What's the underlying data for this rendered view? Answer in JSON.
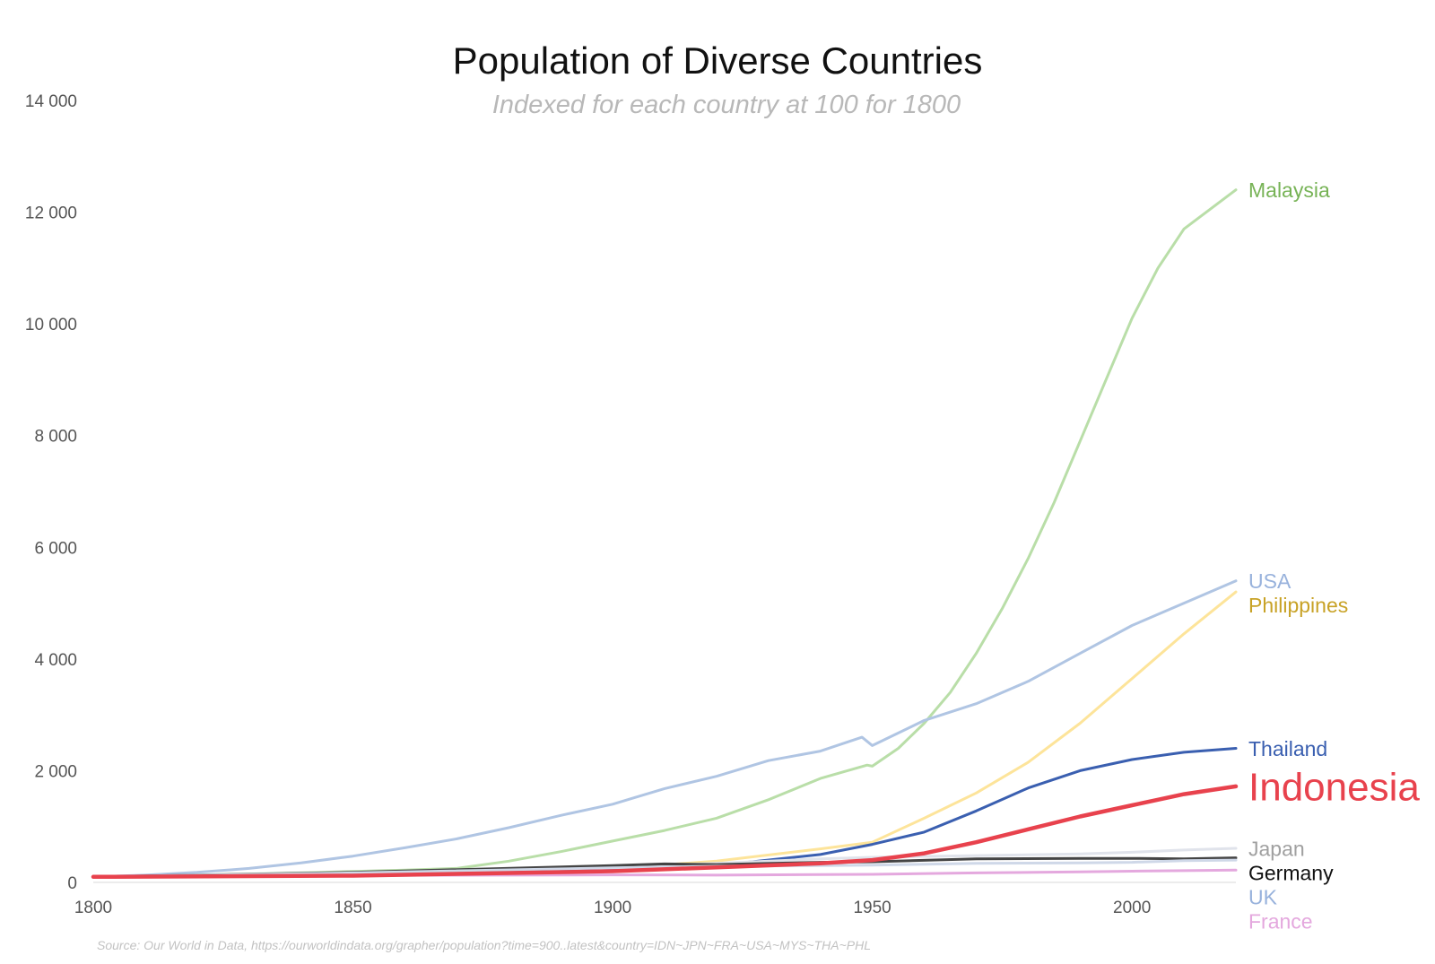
{
  "chart_data": {
    "type": "line",
    "title": "Population of Diverse Countries",
    "subtitle": "Indexed for each country at 100 for 1800",
    "xlabel": "",
    "ylabel": "",
    "xlim": [
      1800,
      2020
    ],
    "ylim": [
      0,
      14000
    ],
    "x_ticks": [
      1800,
      1850,
      1900,
      1950,
      2000
    ],
    "x_tick_labels": [
      "1800",
      "1850",
      "1900",
      "1950",
      "2000"
    ],
    "y_ticks": [
      0,
      2000,
      4000,
      6000,
      8000,
      10000,
      12000,
      14000
    ],
    "y_tick_labels": [
      "0",
      "2 000",
      "4 000",
      "6 000",
      "8 000",
      "10 000",
      "12 000",
      "14 000"
    ],
    "grid": false,
    "legend": "direct labels at line ends (right)",
    "source": "Source: Our World in Data, https://ourworldindata.org/grapher/population?time=900..latest&country=IDN~JPN~FRA~USA~MYS~THA~PHL",
    "series": [
      {
        "name": "Malaysia",
        "label": "Malaysia",
        "color": "#b9dea8",
        "label_color": "#77b356",
        "emphasis": false,
        "points": [
          [
            1800,
            100
          ],
          [
            1820,
            130
          ],
          [
            1840,
            170
          ],
          [
            1860,
            220
          ],
          [
            1870,
            250
          ],
          [
            1880,
            380
          ],
          [
            1890,
            550
          ],
          [
            1900,
            740
          ],
          [
            1910,
            930
          ],
          [
            1920,
            1150
          ],
          [
            1930,
            1480
          ],
          [
            1940,
            1860
          ],
          [
            1949,
            2100
          ],
          [
            1950,
            2080
          ],
          [
            1955,
            2400
          ],
          [
            1960,
            2850
          ],
          [
            1965,
            3400
          ],
          [
            1970,
            4100
          ],
          [
            1975,
            4900
          ],
          [
            1980,
            5800
          ],
          [
            1985,
            6800
          ],
          [
            1990,
            7900
          ],
          [
            1995,
            9000
          ],
          [
            2000,
            10100
          ],
          [
            2005,
            11000
          ],
          [
            2010,
            11700
          ],
          [
            2020,
            12400
          ]
        ]
      },
      {
        "name": "USA",
        "label": "USA",
        "color": "#b0c5e3",
        "label_color": "#98b2dc",
        "emphasis": false,
        "points": [
          [
            1800,
            100
          ],
          [
            1810,
            130
          ],
          [
            1820,
            180
          ],
          [
            1830,
            250
          ],
          [
            1840,
            350
          ],
          [
            1850,
            470
          ],
          [
            1860,
            620
          ],
          [
            1870,
            780
          ],
          [
            1880,
            980
          ],
          [
            1890,
            1200
          ],
          [
            1900,
            1400
          ],
          [
            1910,
            1680
          ],
          [
            1920,
            1900
          ],
          [
            1930,
            2180
          ],
          [
            1940,
            2350
          ],
          [
            1948,
            2600
          ],
          [
            1950,
            2450
          ],
          [
            1960,
            2900
          ],
          [
            1970,
            3200
          ],
          [
            1980,
            3600
          ],
          [
            1990,
            4100
          ],
          [
            2000,
            4600
          ],
          [
            2010,
            5000
          ],
          [
            2020,
            5400
          ]
        ]
      },
      {
        "name": "Philippines",
        "label": "Philippines",
        "color": "#fde49a",
        "label_color": "#c8a226",
        "emphasis": false,
        "points": [
          [
            1800,
            100
          ],
          [
            1850,
            150
          ],
          [
            1900,
            250
          ],
          [
            1920,
            380
          ],
          [
            1940,
            600
          ],
          [
            1950,
            720
          ],
          [
            1960,
            1150
          ],
          [
            1970,
            1600
          ],
          [
            1980,
            2150
          ],
          [
            1990,
            2850
          ],
          [
            2000,
            3650
          ],
          [
            2010,
            4450
          ],
          [
            2020,
            5200
          ]
        ]
      },
      {
        "name": "Thailand",
        "label": "Thailand",
        "color": "#3a5fb0",
        "label_color": "#3a5fb0",
        "emphasis": false,
        "points": [
          [
            1800,
            100
          ],
          [
            1850,
            150
          ],
          [
            1900,
            220
          ],
          [
            1920,
            300
          ],
          [
            1940,
            500
          ],
          [
            1950,
            680
          ],
          [
            1960,
            900
          ],
          [
            1970,
            1280
          ],
          [
            1980,
            1690
          ],
          [
            1990,
            2000
          ],
          [
            2000,
            2200
          ],
          [
            2010,
            2330
          ],
          [
            2020,
            2400
          ]
        ]
      },
      {
        "name": "Indonesia",
        "label": "Indonesia",
        "color": "#e8424d",
        "label_color": "#e8424d",
        "emphasis": true,
        "points": [
          [
            1800,
            100
          ],
          [
            1850,
            120
          ],
          [
            1900,
            200
          ],
          [
            1920,
            270
          ],
          [
            1940,
            340
          ],
          [
            1950,
            400
          ],
          [
            1960,
            520
          ],
          [
            1970,
            720
          ],
          [
            1980,
            950
          ],
          [
            1990,
            1180
          ],
          [
            2000,
            1380
          ],
          [
            2010,
            1580
          ],
          [
            2020,
            1720
          ]
        ]
      },
      {
        "name": "Japan",
        "label": "Japan",
        "color": "#e0e3eb",
        "label_color": "#a0a0a0",
        "emphasis": false,
        "points": [
          [
            1800,
            100
          ],
          [
            1850,
            160
          ],
          [
            1900,
            280
          ],
          [
            1920,
            340
          ],
          [
            1940,
            420
          ],
          [
            1950,
            450
          ],
          [
            1970,
            480
          ],
          [
            1990,
            510
          ],
          [
            2000,
            540
          ],
          [
            2010,
            580
          ],
          [
            2020,
            610
          ]
        ]
      },
      {
        "name": "Germany",
        "label": "Germany",
        "color": "#444444",
        "label_color": "#111111",
        "emphasis": false,
        "points": [
          [
            1800,
            100
          ],
          [
            1850,
            180
          ],
          [
            1900,
            300
          ],
          [
            1910,
            330
          ],
          [
            1920,
            320
          ],
          [
            1940,
            360
          ],
          [
            1950,
            370
          ],
          [
            1970,
            420
          ],
          [
            1990,
            430
          ],
          [
            2000,
            430
          ],
          [
            2010,
            420
          ],
          [
            2020,
            440
          ]
        ]
      },
      {
        "name": "France",
        "label": "France",
        "color": "#e4a8de",
        "label_color": "#e4a8de",
        "emphasis": false,
        "points": [
          [
            1800,
            100
          ],
          [
            1850,
            125
          ],
          [
            1900,
            135
          ],
          [
            1920,
            130
          ],
          [
            1940,
            140
          ],
          [
            1950,
            145
          ],
          [
            1970,
            170
          ],
          [
            1990,
            190
          ],
          [
            2000,
            200
          ],
          [
            2010,
            210
          ],
          [
            2020,
            220
          ]
        ]
      },
      {
        "name": "UK",
        "label": "UK",
        "color": "#cfd8e8",
        "label_color": "#98b2dc",
        "emphasis": false,
        "points": [
          [
            1800,
            100
          ],
          [
            1850,
            170
          ],
          [
            1900,
            260
          ],
          [
            1920,
            290
          ],
          [
            1940,
            300
          ],
          [
            1950,
            310
          ],
          [
            1970,
            340
          ],
          [
            1990,
            350
          ],
          [
            2000,
            360
          ],
          [
            2010,
            390
          ],
          [
            2020,
            400
          ]
        ]
      }
    ]
  }
}
